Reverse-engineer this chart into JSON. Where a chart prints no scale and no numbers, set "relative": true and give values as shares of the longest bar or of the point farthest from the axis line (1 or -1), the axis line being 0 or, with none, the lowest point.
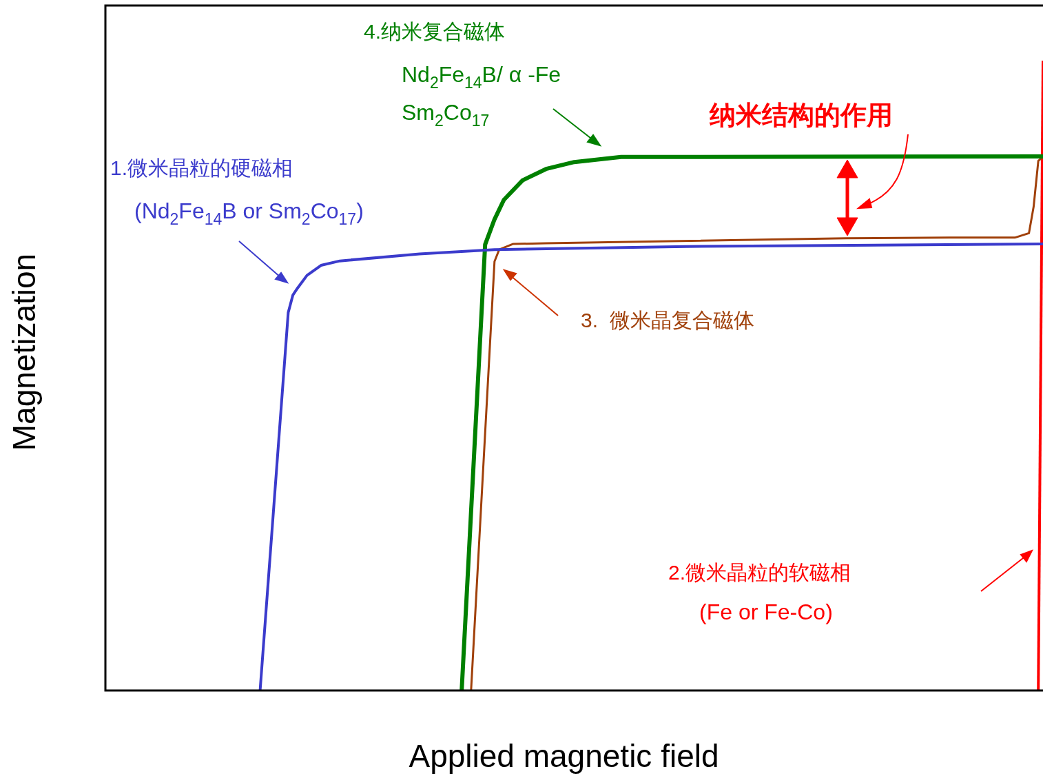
{
  "chart_data": {
    "type": "line",
    "relative": true,
    "xlabel": "Applied magnetic field",
    "ylabel": "Magnetization",
    "tick_labels": false,
    "categories": [
      null,
      null,
      null,
      null,
      null,
      null,
      null,
      null,
      null,
      null,
      null,
      null,
      null,
      null,
      null,
      null,
      null,
      null,
      null,
      null,
      null,
      null,
      null,
      null,
      null,
      null,
      null,
      null,
      null,
      null,
      null,
      null,
      null,
      null,
      null,
      null,
      null,
      null,
      null,
      null,
      null,
      null,
      null,
      null,
      null,
      null,
      null,
      null,
      null,
      null,
      null,
      null,
      null,
      null,
      null,
      null,
      null,
      null,
      null,
      null,
      null,
      null,
      null,
      null,
      null,
      null,
      null,
      null,
      null,
      null,
      null,
      null,
      null,
      null,
      null,
      null,
      null,
      null,
      null,
      null,
      null,
      null,
      null,
      null,
      null,
      null,
      null,
      null,
      null,
      null,
      null,
      null,
      null,
      null,
      null,
      null,
      null,
      null,
      null,
      null,
      null,
      null,
      null,
      null,
      null,
      null,
      null,
      null,
      null,
      null,
      null,
      null,
      null,
      null,
      null,
      null,
      null,
      null,
      null,
      null,
      null,
      null,
      null,
      null,
      null,
      null,
      null,
      null,
      null,
      null,
      null,
      null,
      null,
      null,
      null,
      null,
      null,
      null,
      null,
      null,
      null,
      null,
      null,
      null,
      null,
      null,
      null,
      null,
      null,
      null,
      null,
      null,
      null,
      null,
      null,
      null,
      null,
      null,
      null,
      null,
      null,
      null,
      null,
      null,
      null,
      null,
      null,
      null,
      null,
      null,
      null,
      null,
      null,
      null,
      null,
      null,
      null,
      null,
      null,
      null,
      null,
      null,
      null,
      null,
      null,
      null,
      null,
      null,
      null,
      null,
      null,
      null,
      null,
      null,
      null,
      null,
      null,
      null,
      null,
      null,
      null
    ],
    "series": [
      {
        "color": "#3b3bcc",
        "values": [
          null,
          null,
          null,
          null,
          null,
          null,
          null,
          null,
          null,
          null,
          null,
          null,
          null,
          null,
          null,
          null,
          null,
          null,
          null,
          null,
          null,
          null,
          null,
          null,
          null,
          null,
          null,
          null,
          null,
          null,
          null,
          null,
          null,
          0,
          null,
          null,
          null,
          null,
          null,
          0.6,
          0.628,
          0.639,
          null,
          0.659,
          null,
          null,
          0.675,
          null,
          null,
          null,
          0.682,
          null,
          null,
          null,
          null,
          null,
          null,
          null,
          null,
          null,
          null,
          null,
          null,
          null,
          null,
          null,
          null,
          0.693,
          null,
          null,
          null,
          null,
          null,
          null,
          null,
          null,
          null,
          null,
          null,
          null,
          null,
          null,
          null,
          0.7,
          null,
          null,
          null,
          null,
          null,
          null,
          null,
          null,
          null,
          null,
          null,
          null,
          null,
          null,
          null,
          null,
          null,
          null,
          null,
          null,
          null,
          null,
          null,
          null,
          null,
          null,
          null,
          null,
          null,
          null,
          null,
          null,
          null,
          null,
          null,
          null,
          null,
          null,
          null,
          null,
          0.705,
          null,
          null,
          null,
          null,
          null,
          null,
          null,
          null,
          null,
          null,
          null,
          null,
          null,
          null,
          null,
          null,
          null,
          null,
          null,
          null,
          null,
          null,
          null,
          null,
          null,
          null,
          null,
          null,
          null,
          null,
          null,
          null,
          null,
          null,
          null,
          null,
          null,
          null,
          null,
          null,
          null,
          null,
          null,
          null,
          null,
          null,
          null,
          null,
          null,
          null,
          null,
          null,
          null,
          null,
          null,
          null,
          null,
          null,
          null,
          null,
          null,
          null,
          null,
          null,
          null,
          null,
          null,
          null,
          null,
          null,
          null,
          null,
          null,
          null,
          null,
          0.709
        ]
      },
      {
        "color": "#008000",
        "values": [
          null,
          null,
          null,
          null,
          null,
          null,
          null,
          null,
          null,
          null,
          null,
          null,
          null,
          null,
          null,
          null,
          null,
          null,
          null,
          null,
          null,
          null,
          null,
          null,
          null,
          null,
          null,
          null,
          null,
          null,
          null,
          null,
          null,
          null,
          null,
          null,
          null,
          null,
          null,
          null,
          null,
          null,
          null,
          null,
          null,
          null,
          null,
          null,
          null,
          null,
          null,
          null,
          null,
          null,
          null,
          null,
          null,
          null,
          null,
          null,
          null,
          null,
          null,
          null,
          null,
          null,
          null,
          null,
          null,
          null,
          null,
          null,
          null,
          null,
          null,
          null,
          0,
          null,
          null,
          null,
          null,
          0.708,
          null,
          0.748,
          null,
          0.779,
          null,
          null,
          null,
          0.81,
          null,
          null,
          null,
          null,
          0.828,
          null,
          null,
          null,
          null,
          null,
          0.839,
          null,
          null,
          null,
          null,
          null,
          null,
          null,
          null,
          null,
          0.847,
          null,
          null,
          null,
          null,
          null,
          null,
          null,
          null,
          null,
          null,
          null,
          null,
          null,
          null,
          null,
          null,
          null,
          null,
          null,
          null,
          null,
          null,
          null,
          null,
          null,
          null,
          null,
          null,
          null,
          null,
          null,
          null,
          null,
          null,
          null,
          null,
          null,
          null,
          null,
          null,
          null,
          null,
          null,
          null,
          null,
          null,
          null,
          null,
          null,
          null,
          null,
          null,
          null,
          null,
          null,
          null,
          null,
          null,
          null,
          null,
          null,
          null,
          null,
          null,
          null,
          null,
          null,
          null,
          null,
          null,
          null,
          null,
          null,
          null,
          null,
          null,
          null,
          null,
          null,
          null,
          null,
          null,
          null,
          null,
          null,
          null,
          null,
          null,
          null,
          0.848
        ]
      },
      {
        "color": "#a0400a",
        "values": [
          null,
          null,
          null,
          null,
          null,
          null,
          null,
          null,
          null,
          null,
          null,
          null,
          null,
          null,
          null,
          null,
          null,
          null,
          null,
          null,
          null,
          null,
          null,
          null,
          null,
          null,
          null,
          null,
          null,
          null,
          null,
          null,
          null,
          null,
          null,
          null,
          null,
          null,
          null,
          null,
          null,
          null,
          null,
          null,
          null,
          null,
          null,
          null,
          null,
          null,
          null,
          null,
          null,
          null,
          null,
          null,
          null,
          null,
          null,
          null,
          null,
          null,
          null,
          null,
          null,
          null,
          null,
          null,
          null,
          null,
          null,
          null,
          null,
          null,
          null,
          null,
          null,
          null,
          0,
          null,
          null,
          null,
          null,
          0.681,
          0.7,
          null,
          null,
          0.709,
          null,
          null,
          null,
          null,
          null,
          null,
          0.71,
          null,
          null,
          null,
          null,
          null,
          null,
          null,
          null,
          null,
          null,
          null,
          null,
          null,
          null,
          null,
          null,
          null,
          null,
          null,
          null,
          null,
          null,
          null,
          null,
          null,
          null,
          null,
          null,
          null,
          null,
          null,
          null,
          null,
          null,
          null,
          null,
          null,
          null,
          null,
          null,
          null,
          null,
          null,
          null,
          null,
          null,
          null,
          null,
          null,
          null,
          null,
          null,
          null,
          null,
          null,
          null,
          null,
          null,
          null,
          null,
          null,
          null,
          null,
          0.718,
          null,
          null,
          null,
          null,
          null,
          null,
          null,
          null,
          null,
          null,
          null,
          null,
          null,
          null,
          null,
          null,
          null,
          null,
          null,
          null,
          null,
          0.719,
          null,
          null,
          null,
          null,
          null,
          null,
          null,
          null,
          null,
          null,
          null,
          null,
          null,
          0.719,
          null,
          null,
          0.726,
          0.768,
          0.841,
          0.847
        ]
      },
      {
        "color": "#ff0000",
        "values": [
          null,
          null,
          null,
          null,
          null,
          null,
          null,
          null,
          null,
          null,
          null,
          null,
          null,
          null,
          null,
          null,
          null,
          null,
          null,
          null,
          null,
          null,
          null,
          null,
          null,
          null,
          null,
          null,
          null,
          null,
          null,
          null,
          null,
          null,
          null,
          null,
          null,
          null,
          null,
          null,
          null,
          null,
          null,
          null,
          null,
          null,
          null,
          null,
          null,
          null,
          null,
          null,
          null,
          null,
          null,
          null,
          null,
          null,
          null,
          null,
          null,
          null,
          null,
          null,
          null,
          null,
          null,
          null,
          null,
          null,
          null,
          null,
          null,
          null,
          null,
          null,
          null,
          null,
          null,
          null,
          null,
          null,
          null,
          null,
          null,
          null,
          null,
          null,
          null,
          null,
          null,
          null,
          null,
          null,
          null,
          null,
          null,
          null,
          null,
          null,
          null,
          null,
          null,
          null,
          null,
          null,
          null,
          null,
          null,
          null,
          null,
          null,
          null,
          null,
          null,
          null,
          null,
          null,
          null,
          null,
          null,
          null,
          null,
          null,
          null,
          null,
          null,
          null,
          null,
          null,
          null,
          null,
          null,
          null,
          null,
          null,
          null,
          null,
          null,
          null,
          null,
          null,
          null,
          null,
          null,
          null,
          null,
          null,
          null,
          null,
          null,
          null,
          null,
          null,
          null,
          null,
          null,
          null,
          null,
          null,
          null,
          null,
          null,
          null,
          null,
          null,
          null,
          null,
          null,
          null,
          null,
          null,
          null,
          null,
          null,
          null,
          null,
          null,
          null,
          null,
          null,
          null,
          null,
          null,
          null,
          null,
          null,
          null,
          null,
          null,
          null,
          null,
          null,
          null,
          null,
          null,
          null,
          null,
          null,
          0,
          1
        ]
      }
    ],
    "annotations": [
      "1.微米晶粒的硬磁相",
      "(Nd$_{2}$Fe$_{14}$B or Sm$_{2}$Co$_{17}$)",
      "4.纳米复合磁体",
      "Nd$_{2}$Fe$_{14}$B/ α -Fe",
      "Sm$_{2}$Co$_{17}$",
      "纳米结构的作用",
      "3.  微米晶复合磁体",
      "2.微米晶粒的软磁相",
      "(Fe or Fe-Co)"
    ]
  }
}
